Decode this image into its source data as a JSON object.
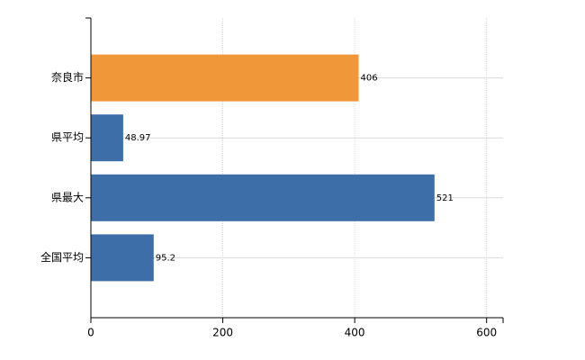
{
  "chart_data": {
    "type": "bar",
    "orientation": "horizontal",
    "categories": [
      "奈良市",
      "県平均",
      "県最大",
      "全国平均"
    ],
    "values": [
      406,
      48.97,
      521,
      95.2
    ],
    "colors": [
      "#f0973a",
      "#3d6ea8",
      "#3d6ea8",
      "#3d6ea8"
    ],
    "xlim": [
      0,
      625
    ],
    "xticks": [
      0,
      200,
      400,
      600
    ],
    "grid": true
  }
}
